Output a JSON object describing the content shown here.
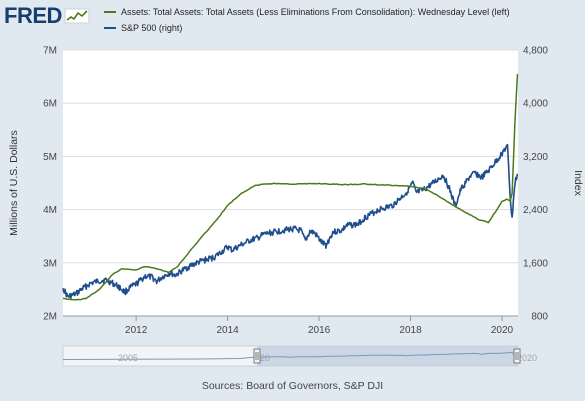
{
  "brand": {
    "name": "FRED"
  },
  "sources": "Sources: Board of Governors, S&P DJI",
  "navigator": {
    "start_label": "2005",
    "end_label": "2020",
    "mid_label": "20"
  },
  "colors": {
    "assets": "#4c7a1a",
    "sp500": "#1f4e8c",
    "background": "#e1e9f0",
    "plot": "#ffffff",
    "grid": "#dddddd"
  },
  "chart_data": {
    "type": "line",
    "title": "",
    "xlabel": "",
    "ylabel_left": "Millions of U.S. Dollars",
    "ylabel_right": "Index",
    "xlim": [
      2010.4,
      2020.35
    ],
    "ylim_left": [
      2,
      7
    ],
    "ylim_right": [
      800,
      4800
    ],
    "x_ticks": [
      2012,
      2014,
      2016,
      2018,
      2020
    ],
    "y_left_ticks": [
      "2M",
      "3M",
      "4M",
      "5M",
      "6M",
      "7M"
    ],
    "y_left_tick_values": [
      2,
      3,
      4,
      5,
      6,
      7
    ],
    "y_right_ticks": [
      "800",
      "1,600",
      "2,400",
      "3,200",
      "4,000",
      "4,800"
    ],
    "y_right_tick_values": [
      800,
      1600,
      2400,
      3200,
      4000,
      4800
    ],
    "grid": "horizontal",
    "legend_position": "top",
    "series": [
      {
        "name": "Assets: Total Assets: Total Assets (Less Eliminations From Consolidation): Wednesday Level (left)",
        "axis": "left",
        "x": [
          2010.4,
          2010.7,
          2010.9,
          2011.2,
          2011.5,
          2011.7,
          2012.0,
          2012.2,
          2012.5,
          2012.7,
          2012.9,
          2013.2,
          2013.5,
          2013.8,
          2014.0,
          2014.3,
          2014.6,
          2014.8,
          2015.0,
          2015.5,
          2016.0,
          2016.5,
          2017.0,
          2017.5,
          2017.8,
          2018.0,
          2018.3,
          2018.6,
          2018.9,
          2019.2,
          2019.5,
          2019.7,
          2019.85,
          2020.0,
          2020.1,
          2020.18,
          2020.22,
          2020.25,
          2020.28,
          2020.31,
          2020.34
        ],
        "values": [
          2.33,
          2.3,
          2.33,
          2.5,
          2.8,
          2.89,
          2.87,
          2.93,
          2.88,
          2.82,
          2.92,
          3.25,
          3.55,
          3.85,
          4.08,
          4.3,
          4.45,
          4.48,
          4.49,
          4.48,
          4.49,
          4.47,
          4.48,
          4.46,
          4.45,
          4.44,
          4.4,
          4.26,
          4.1,
          3.95,
          3.81,
          3.76,
          3.95,
          4.15,
          4.2,
          4.16,
          4.3,
          4.9,
          5.6,
          6.1,
          6.55
        ]
      },
      {
        "name": "S&P 500 (right)",
        "axis": "right",
        "x": [
          2010.4,
          2010.5,
          2010.6,
          2010.7,
          2010.8,
          2011.0,
          2011.2,
          2011.35,
          2011.6,
          2011.75,
          2011.9,
          2012.0,
          2012.2,
          2012.35,
          2012.45,
          2012.6,
          2012.75,
          2012.85,
          2013.0,
          2013.2,
          2013.4,
          2013.5,
          2013.7,
          2013.9,
          2014.0,
          2014.1,
          2014.3,
          2014.5,
          2014.65,
          2014.8,
          2015.0,
          2015.3,
          2015.45,
          2015.6,
          2015.7,
          2015.8,
          2015.9,
          2016.05,
          2016.15,
          2016.3,
          2016.5,
          2016.6,
          2016.85,
          2017.0,
          2017.3,
          2017.6,
          2017.9,
          2018.05,
          2018.12,
          2018.3,
          2018.5,
          2018.72,
          2018.85,
          2018.98,
          2019.1,
          2019.3,
          2019.42,
          2019.55,
          2019.7,
          2019.9,
          2020.05,
          2020.12,
          2020.18,
          2020.22,
          2020.26,
          2020.3,
          2020.35
        ],
        "values": [
          1220,
          1090,
          1110,
          1140,
          1200,
          1290,
          1330,
          1340,
          1250,
          1160,
          1240,
          1280,
          1400,
          1380,
          1320,
          1400,
          1450,
          1410,
          1480,
          1560,
          1620,
          1640,
          1680,
          1780,
          1840,
          1790,
          1870,
          1940,
          1970,
          2030,
          2060,
          2100,
          2110,
          2080,
          1930,
          2070,
          2050,
          1910,
          1860,
          2060,
          2090,
          2160,
          2180,
          2280,
          2400,
          2460,
          2650,
          2800,
          2650,
          2700,
          2800,
          2920,
          2710,
          2450,
          2700,
          2900,
          2950,
          2880,
          2980,
          3150,
          3300,
          3340,
          2600,
          2250,
          2650,
          2850,
          2930
        ]
      }
    ]
  }
}
